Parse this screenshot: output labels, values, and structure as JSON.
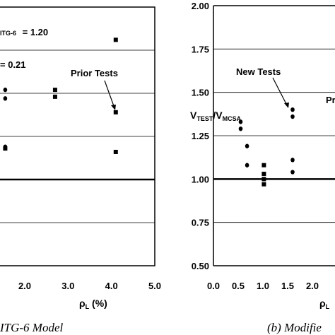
{
  "chart_data": [
    {
      "type": "scatter",
      "caption": "ITG-6 Model",
      "xlabel_main": "ρ",
      "xlabel_sub": "L",
      "xlabel_unit": " (%)",
      "xlim": [
        0.0,
        5.0
      ],
      "xticks": [
        "2.0",
        "3.0",
        "4.0",
        "5.0"
      ],
      "xtick_values": [
        2.0,
        3.0,
        4.0,
        5.0
      ],
      "ylim": [
        0.5,
        2.0
      ],
      "reference_line": 1.0,
      "grid_y": [
        0.75,
        1.25,
        1.5,
        1.75
      ],
      "annotations": {
        "mean_label": "ITG-6",
        "mean_value": "= 1.20",
        "cov_value": "= 0.21",
        "prior_tests": "Prior Tests"
      },
      "series": [
        {
          "marker": "square",
          "points": [
            [
              2.7,
              1.48
            ],
            [
              2.7,
              1.52
            ],
            [
              4.1,
              1.39
            ],
            [
              4.1,
              1.16
            ],
            [
              4.1,
              1.81
            ],
            [
              1.55,
              1.18
            ]
          ]
        },
        {
          "marker": "circle",
          "points": [
            [
              1.55,
              1.47
            ],
            [
              1.55,
              1.52
            ],
            [
              1.55,
              1.19
            ]
          ]
        }
      ]
    },
    {
      "type": "scatter",
      "caption": "(b) Modifie",
      "ylabel_main": "V",
      "ylabel_sub1": "TEST",
      "ylabel_sep": "/V",
      "ylabel_sub2": "MCSA",
      "xlabel_main": "ρ",
      "xlabel_sub": "L",
      "xlim": [
        0.0,
        5.0
      ],
      "xticks": [
        "0.0",
        "0.5",
        "1.0",
        "1.5",
        "2.0"
      ],
      "xtick_values": [
        0.0,
        0.5,
        1.0,
        1.5,
        2.0
      ],
      "ylim": [
        0.5,
        2.0
      ],
      "yticks": [
        "0.50",
        "0.75",
        "1.00",
        "1.25",
        "1.50",
        "1.75",
        "2.00"
      ],
      "ytick_values": [
        0.5,
        0.75,
        1.0,
        1.25,
        1.5,
        1.75,
        2.0
      ],
      "reference_line": 1.0,
      "grid_y": [
        0.75,
        1.25,
        1.5,
        1.75
      ],
      "annotations": {
        "new_tests": "New Tests",
        "prior_cut": "Pri"
      },
      "series": [
        {
          "marker": "circle",
          "points": [
            [
              0.55,
              1.33
            ],
            [
              0.55,
              1.29
            ],
            [
              0.68,
              1.19
            ],
            [
              0.68,
              1.08
            ],
            [
              1.6,
              1.4
            ],
            [
              1.6,
              1.36
            ],
            [
              1.6,
              1.11
            ],
            [
              1.6,
              1.04
            ]
          ]
        },
        {
          "marker": "square",
          "points": [
            [
              1.02,
              1.08
            ],
            [
              1.02,
              1.03
            ],
            [
              1.02,
              1.0
            ],
            [
              1.02,
              0.97
            ]
          ]
        }
      ]
    }
  ]
}
